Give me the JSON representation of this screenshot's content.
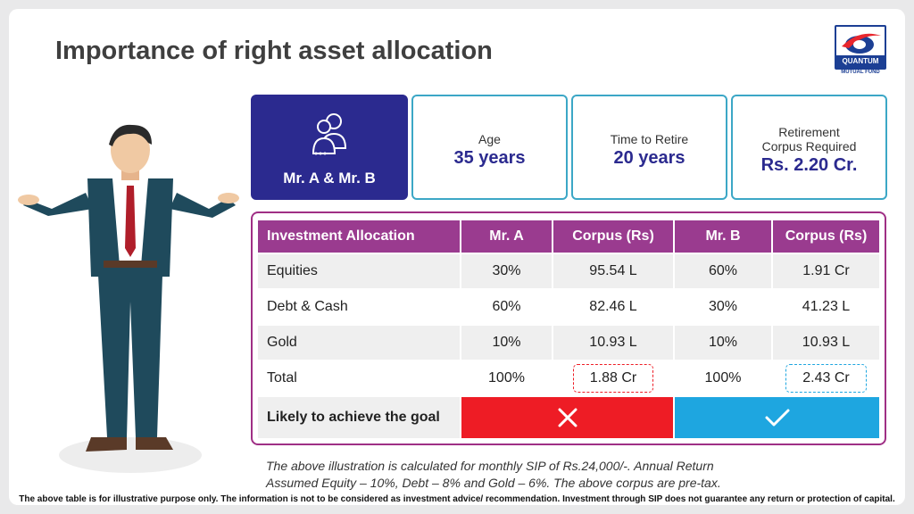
{
  "slide": {
    "title": "Importance of right asset allocation",
    "logo": {
      "name": "QUANTUM",
      "tagline": "MUTUAL FUND"
    }
  },
  "cards": {
    "profile": {
      "icon": "users-icon",
      "label": "Mr. A & Mr. B"
    },
    "age": {
      "label": "Age",
      "value": "35 years"
    },
    "retire": {
      "label": "Time to Retire",
      "value": "20 years"
    },
    "corpus": {
      "label_line1": "Retirement",
      "label_line2": "Corpus Required",
      "value": "Rs. 2.20 Cr."
    }
  },
  "table": {
    "headers": [
      "Investment Allocation",
      "Mr. A",
      "Corpus (Rs)",
      "Mr. B",
      "Corpus (Rs)"
    ],
    "rows": [
      [
        "Equities",
        "30%",
        "95.54 L",
        "60%",
        "1.91 Cr"
      ],
      [
        "Debt & Cash",
        "60%",
        "82.46 L",
        "30%",
        "41.23 L"
      ],
      [
        "Gold",
        "10%",
        "10.93 L",
        "10%",
        "10.93 L"
      ],
      [
        "Total",
        "100%",
        "1.88 Cr",
        "100%",
        "2.43 Cr"
      ]
    ],
    "goal": {
      "label": "Likely to achieve the goal",
      "mr_a": "cross-icon",
      "mr_b": "check-icon"
    }
  },
  "colors": {
    "header": "#9a3b8f",
    "card_dark": "#2b2a8f",
    "fail": "#ee1c25",
    "pass": "#1ea6e0",
    "border_cyan": "#3ca7c6"
  },
  "note": {
    "line1": "The above illustration is calculated for monthly SIP of Rs.24,000/-. Annual Return",
    "line2": "Assumed  Equity – 10%, Debt – 8% and Gold – 6%. The above corpus are pre-tax."
  },
  "disclaimer": "The above table is for illustrative purpose only. The information is not to be considered as investment advice/ recommendation. Investment through SIP does not guarantee any return or protection of capital."
}
